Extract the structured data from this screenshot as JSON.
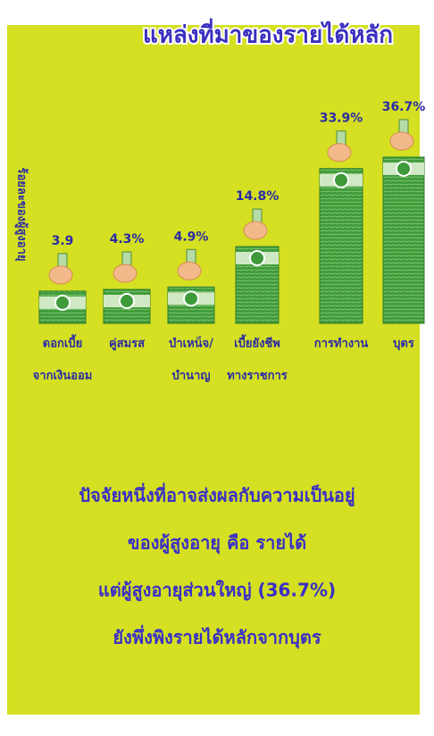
{
  "chart_data": {
    "type": "bar",
    "title": "แหล่งที่มาของรายได้หลัก",
    "y_label": "ร้อยละของผู้สูงอายุ",
    "categories": [
      [
        "ดอกเบี้ย",
        "จากเงินออม"
      ],
      [
        "คู่สมรส"
      ],
      [
        "บำเหน็จ/",
        "บำนาญ"
      ],
      [
        "เบี้ยยังชีพ",
        "ทางราชการ"
      ],
      [
        "การทำงาน"
      ],
      [
        "บุตร"
      ]
    ],
    "values": [
      3.9,
      4.3,
      4.9,
      14.8,
      33.9,
      36.7
    ],
    "value_labels": [
      "3.9",
      "4.3%",
      "4.9%",
      "14.8%",
      "33.9%",
      "36.7%"
    ],
    "color": "#3f9a3a",
    "ylim": [
      -4,
      38
    ],
    "note": [
      "ปัจจัยหนึ่งที่อาจส่งผลกับความเป็นอยู่",
      "ของผู้สูงอายุ คือ รายได้",
      "แต่ผู้สูงอายุส่วนใหญ่ (36.7%)",
      "ยังพึ่งพิงรายได้หลักจากบุตร"
    ]
  }
}
